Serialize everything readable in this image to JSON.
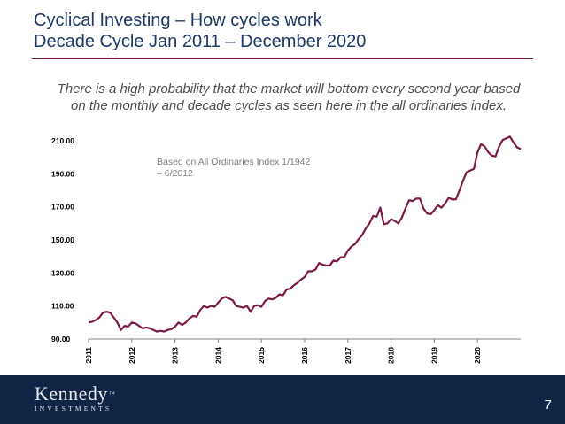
{
  "title_line1": "Cyclical Investing – How cycles work",
  "title_line2": "Decade Cycle Jan 2011 – December 2020",
  "subtitle": "There is a high probability that the market will bottom every second year based on the monthly and decade cycles as seen here in the all ordinaries index.",
  "footer": {
    "logo_main": "Kennedy",
    "logo_tm": "™",
    "logo_sub": "INVESTMENTS",
    "page_number": "7"
  },
  "colors": {
    "title": "#1f3864",
    "line": "#7b1a48",
    "footer_bg": "#102445",
    "rule": "#7a1a3a"
  },
  "chart_data": {
    "type": "line",
    "title": "",
    "xlabel": "",
    "ylabel": "",
    "ylim": [
      90,
      210
    ],
    "yticks": [
      90,
      110,
      130,
      150,
      170,
      190,
      210
    ],
    "ytick_labels": [
      "90.00",
      "110.00",
      "130.00",
      "150.00",
      "170.00",
      "190.00",
      "210.00"
    ],
    "xticks": [
      "2011",
      "2012",
      "2013",
      "2014",
      "2015",
      "2016",
      "2017",
      "2018",
      "2019",
      "2020"
    ],
    "annotation": "Based on All Ordinaries Index 1/1942 – 6/2012",
    "grid": false,
    "series": [
      {
        "values": [
          100,
          100.5,
          101.5,
          103,
          106,
          106.5,
          106,
          103,
          100,
          95.5,
          98,
          97.5,
          100,
          99.5,
          98,
          96.5,
          97,
          96.5,
          95.5,
          94.5,
          95,
          94.5,
          95.5,
          96,
          97.5,
          100,
          98.5,
          100,
          102.5,
          104,
          103.5,
          107.5,
          110,
          109,
          110,
          109.5,
          112,
          114.5,
          115.5,
          114.5,
          113.5,
          110,
          109.5,
          109,
          110,
          106.5,
          110,
          110.5,
          109.5,
          113,
          114.5,
          114,
          115,
          117,
          116.5,
          120,
          120.5,
          122.5,
          124,
          126,
          127.5,
          131,
          131,
          132,
          136,
          135,
          134.5,
          134.5,
          137.5,
          137,
          139.5,
          139.5,
          143.5,
          146,
          147.5,
          150.5,
          153,
          157,
          160,
          164.5,
          164,
          169.5,
          159.5,
          160,
          162.5,
          161.5,
          160,
          163.5,
          169,
          174,
          173.5,
          175,
          175,
          169,
          166,
          165.5,
          168,
          171,
          169.5,
          172,
          175.5,
          174.5,
          174.5,
          180,
          186,
          191,
          192,
          193,
          203,
          208,
          206.5,
          203,
          201,
          200.5,
          206.5,
          210.5,
          211.5,
          212.5,
          209,
          206,
          205
        ]
      }
    ]
  }
}
